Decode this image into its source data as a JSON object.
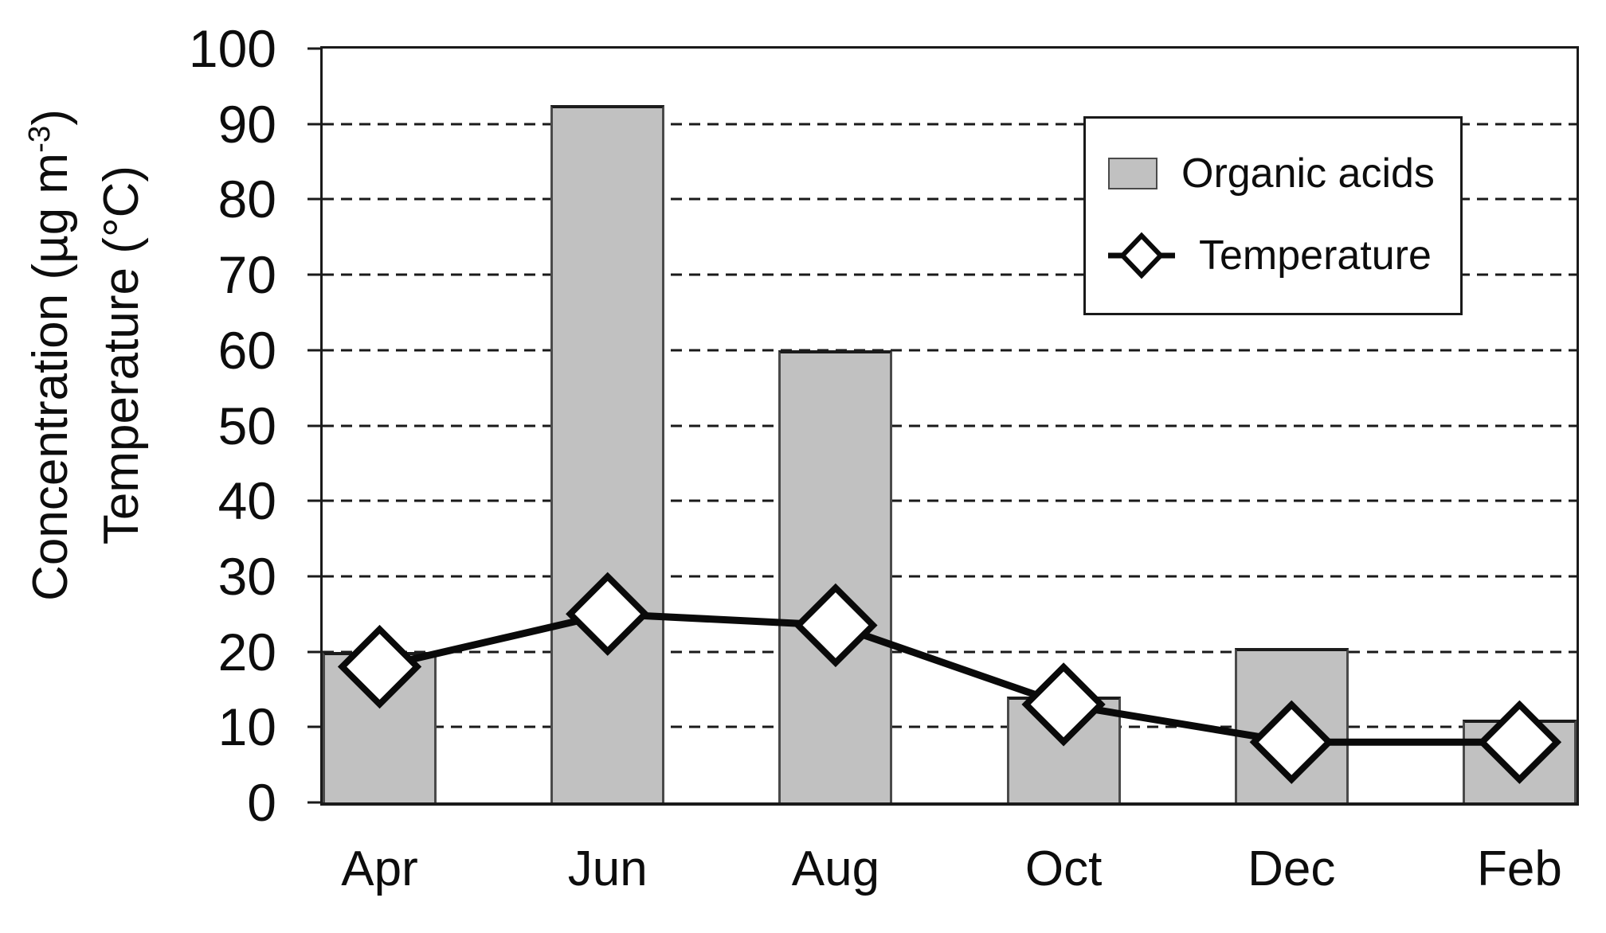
{
  "chart_data": {
    "type": "combo-bar-line",
    "categories": [
      "Apr",
      "Jun",
      "Aug",
      "Oct",
      "Dec",
      "Feb"
    ],
    "series": [
      {
        "name": "Organic acids",
        "type": "bar",
        "values": [
          20,
          92.5,
          60,
          14,
          20.5,
          11
        ]
      },
      {
        "name": "Temperature",
        "type": "line",
        "marker": "diamond",
        "values": [
          18,
          25,
          23.5,
          13,
          8,
          8
        ]
      }
    ],
    "title": "",
    "xlabel": "",
    "ylabel_lines": [
      "Concentration (µg m⁻³)",
      "Temperature (°C)"
    ],
    "ylim": [
      0,
      100
    ],
    "yticks": [
      0,
      10,
      20,
      30,
      40,
      50,
      60,
      70,
      80,
      90,
      100
    ],
    "grid": "horizontal-dashed",
    "legend_position": "upper-right"
  },
  "ylabel": {
    "line1_main": "Concentration (µg m",
    "line1_sup": "-3",
    "line1_end": ")",
    "line2": "Temperature (°C)"
  },
  "legend": {
    "items": [
      {
        "label": "Organic acids"
      },
      {
        "label": "Temperature"
      }
    ]
  },
  "colors": {
    "bar_fill": "#c1c1c1",
    "bar_border": "#4a4a4a",
    "line": "#0a0a0a",
    "marker_fill": "#ffffff",
    "frame": "#1a1a1a"
  }
}
